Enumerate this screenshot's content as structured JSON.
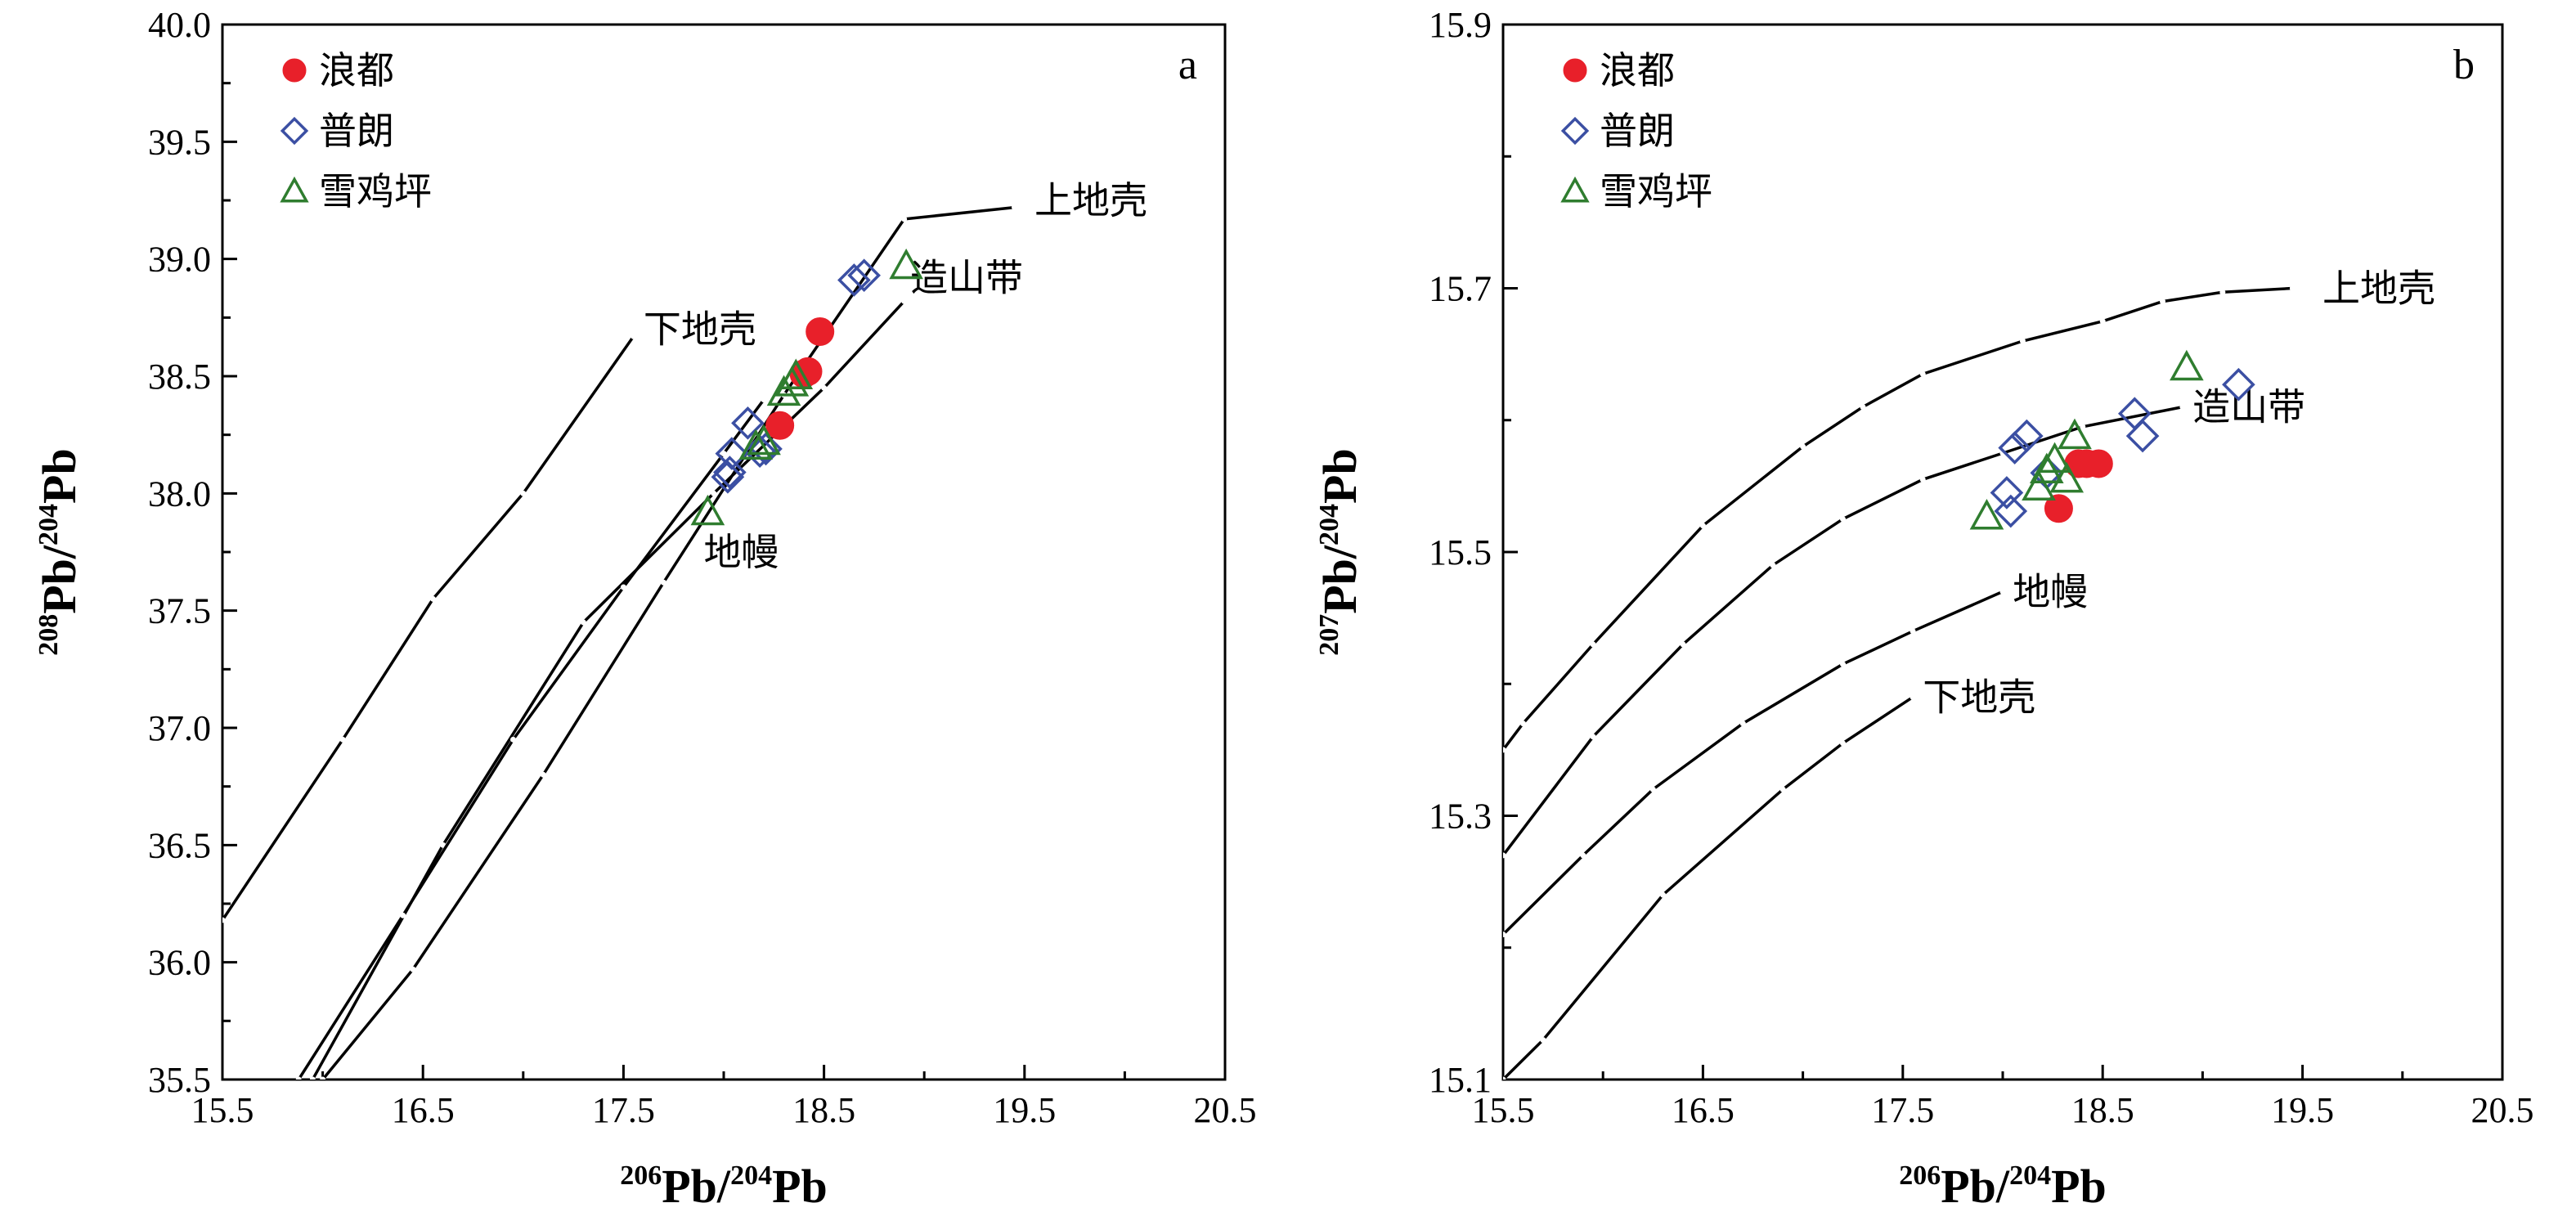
{
  "chart_data": [
    {
      "type": "scatter",
      "panel": "a",
      "xlabel": {
        "sup": "206",
        "text": "Pb/",
        "sup2": "204",
        "text2": "Pb"
      },
      "ylabel": {
        "sup": "208",
        "text": "Pb/",
        "sup2": "204",
        "text2": "Pb"
      },
      "xlim": [
        15.5,
        20.5
      ],
      "ylim": [
        35.5,
        40.0
      ],
      "xticks": [
        "15.5",
        "16.5",
        "17.5",
        "18.5",
        "19.5",
        "20.5"
      ],
      "yticks": [
        "35.5",
        "36.0",
        "36.5",
        "37.0",
        "37.5",
        "38.0",
        "38.5",
        "39.0",
        "39.5",
        "40.0"
      ],
      "grid": false,
      "legend_position": "top-left",
      "curves": [
        {
          "label": "上地壳",
          "points": [
            [
              16.0,
              35.5
            ],
            [
              16.45,
              35.97
            ],
            [
              17.1,
              36.8
            ],
            [
              17.7,
              37.62
            ],
            [
              18.3,
              38.42
            ],
            [
              18.9,
              39.17
            ],
            [
              19.45,
              39.22
            ]
          ]
        },
        {
          "label": "造山带",
          "points": [
            [
              15.95,
              35.5
            ],
            [
              16.6,
              36.5
            ],
            [
              17.3,
              37.45
            ],
            [
              17.95,
              38.0
            ],
            [
              18.5,
              38.45
            ],
            [
              18.9,
              38.82
            ]
          ]
        },
        {
          "label": "地幔",
          "points": [
            [
              15.88,
              35.5
            ],
            [
              16.4,
              36.2
            ],
            [
              16.95,
              36.95
            ],
            [
              17.5,
              37.6
            ],
            [
              18.0,
              38.17
            ],
            [
              18.2,
              38.4
            ]
          ]
        },
        {
          "label": "下地壳",
          "points": [
            [
              15.5,
              36.18
            ],
            [
              16.1,
              36.95
            ],
            [
              16.55,
              37.55
            ],
            [
              17.0,
              38.0
            ],
            [
              17.55,
              38.67
            ]
          ]
        }
      ],
      "curve_label_positions": [
        [
          19.55,
          39.25
        ],
        [
          18.93,
          38.92
        ],
        [
          17.9,
          37.75
        ],
        [
          17.6,
          38.7
        ]
      ],
      "series": [
        {
          "name": "浪都",
          "marker": "circle",
          "color": "#e8202a",
          "points": [
            [
              18.28,
              38.29
            ],
            [
              18.4,
              38.51
            ],
            [
              18.42,
              38.52
            ],
            [
              18.48,
              38.69
            ]
          ]
        },
        {
          "name": "普朗",
          "marker": "diamond",
          "color": "#3b4fa3",
          "points": [
            [
              18.02,
              38.07
            ],
            [
              18.03,
              38.09
            ],
            [
              18.04,
              38.17
            ],
            [
              18.12,
              38.3
            ],
            [
              18.18,
              38.18
            ],
            [
              18.21,
              38.19
            ],
            [
              18.65,
              38.91
            ],
            [
              18.7,
              38.93
            ]
          ]
        },
        {
          "name": "雪鸡坪",
          "marker": "triangle",
          "color": "#2f7d2f",
          "points": [
            [
              17.92,
              37.92
            ],
            [
              18.16,
              38.2
            ],
            [
              18.2,
              38.22
            ],
            [
              18.3,
              38.43
            ],
            [
              18.34,
              38.47
            ],
            [
              18.36,
              38.5
            ],
            [
              18.91,
              38.97
            ]
          ]
        }
      ]
    },
    {
      "type": "scatter",
      "panel": "b",
      "xlabel": {
        "sup": "206",
        "text": "Pb/",
        "sup2": "204",
        "text2": "Pb"
      },
      "ylabel": {
        "sup": "207",
        "text": "Pb/",
        "sup2": "204",
        "text2": "Pb"
      },
      "xlim": [
        15.5,
        20.5
      ],
      "ylim": [
        15.1,
        15.9
      ],
      "xticks": [
        "15.5",
        "16.5",
        "17.5",
        "18.5",
        "19.5",
        "20.5"
      ],
      "yticks": [
        "15.1",
        "15.3",
        "15.5",
        "15.7",
        "15.9"
      ],
      "grid": false,
      "legend_position": "top-left",
      "curves": [
        {
          "label": "上地壳",
          "points": [
            [
              15.5,
              15.35
            ],
            [
              15.6,
              15.37
            ],
            [
              15.95,
              15.43
            ],
            [
              16.5,
              15.52
            ],
            [
              17.0,
              15.58
            ],
            [
              17.3,
              15.61
            ],
            [
              17.6,
              15.635
            ],
            [
              18.1,
              15.66
            ],
            [
              18.5,
              15.675
            ],
            [
              18.8,
              15.69
            ],
            [
              19.1,
              15.697
            ],
            [
              19.45,
              15.7
            ]
          ]
        },
        {
          "label": "造山带",
          "points": [
            [
              15.5,
              15.27
            ],
            [
              15.95,
              15.36
            ],
            [
              16.4,
              15.43
            ],
            [
              16.85,
              15.49
            ],
            [
              17.2,
              15.525
            ],
            [
              17.6,
              15.555
            ],
            [
              18.0,
              15.575
            ],
            [
              18.4,
              15.595
            ],
            [
              18.9,
              15.61
            ]
          ]
        },
        {
          "label": "地幔",
          "points": [
            [
              15.5,
              15.21
            ],
            [
              15.9,
              15.27
            ],
            [
              16.25,
              15.32
            ],
            [
              16.7,
              15.37
            ],
            [
              17.2,
              15.415
            ],
            [
              17.55,
              15.44
            ],
            [
              18.0,
              15.47
            ]
          ]
        },
        {
          "label": "下地壳",
          "points": [
            [
              15.5,
              15.1
            ],
            [
              15.7,
              15.13
            ],
            [
              16.3,
              15.24
            ],
            [
              16.9,
              15.32
            ],
            [
              17.2,
              15.355
            ],
            [
              17.55,
              15.39
            ]
          ]
        }
      ],
      "curve_label_positions": [
        [
          19.6,
          15.7
        ],
        [
          18.95,
          15.61
        ],
        [
          18.05,
          15.47
        ],
        [
          17.6,
          15.39
        ]
      ],
      "series": [
        {
          "name": "浪都",
          "marker": "circle",
          "color": "#e8202a",
          "points": [
            [
              18.28,
              15.533
            ],
            [
              18.38,
              15.567
            ],
            [
              18.42,
              15.567
            ],
            [
              18.48,
              15.567
            ]
          ]
        },
        {
          "name": "普朗",
          "marker": "diamond",
          "color": "#3b4fa3",
          "points": [
            [
              18.02,
              15.545
            ],
            [
              18.04,
              15.531
            ],
            [
              18.06,
              15.579
            ],
            [
              18.12,
              15.588
            ],
            [
              18.22,
              15.56
            ],
            [
              18.66,
              15.605
            ],
            [
              18.7,
              15.588
            ],
            [
              19.18,
              15.627
            ]
          ]
        },
        {
          "name": "雪鸡坪",
          "marker": "triangle",
          "color": "#2f7d2f",
          "points": [
            [
              17.92,
              15.527
            ],
            [
              18.18,
              15.549
            ],
            [
              18.22,
              15.562
            ],
            [
              18.26,
              15.57
            ],
            [
              18.32,
              15.555
            ],
            [
              18.36,
              15.588
            ],
            [
              18.92,
              15.64
            ]
          ]
        }
      ]
    }
  ]
}
